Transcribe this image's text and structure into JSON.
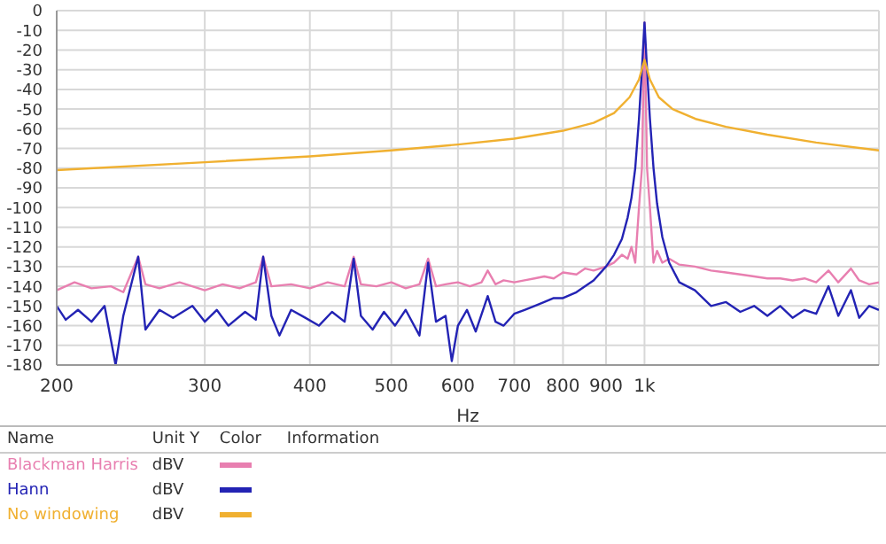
{
  "chart_data": {
    "type": "line",
    "xlabel": "Hz",
    "log": "x",
    "grid": true,
    "legend": "bottom",
    "marker": "none",
    "line_style": "solid",
    "xlim": [
      200,
      1900
    ],
    "xticks": [
      200,
      300,
      400,
      500,
      600,
      700,
      800,
      900,
      {
        "value": 1000,
        "label": "1k"
      }
    ],
    "ylim": [
      -180,
      0
    ],
    "yticks": [
      0,
      -10,
      -20,
      -30,
      -40,
      -50,
      -60,
      -70,
      -80,
      -90,
      -100,
      -110,
      -120,
      -130,
      -140,
      -150,
      -160,
      -170,
      -180
    ],
    "annotations": [
      "Name",
      "Unit Y",
      "Color",
      "Information",
      "dBV"
    ],
    "series": [
      {
        "name": "Blackman Harris",
        "color": "#e87fb0",
        "x": [
          200,
          210,
          220,
          232,
          240,
          250,
          255,
          265,
          280,
          300,
          315,
          330,
          345,
          352,
          360,
          380,
          400,
          420,
          440,
          451,
          460,
          480,
          500,
          520,
          540,
          553,
          565,
          580,
          600,
          620,
          640,
          651,
          665,
          680,
          700,
          720,
          740,
          760,
          780,
          800,
          830,
          850,
          870,
          900,
          920,
          940,
          955,
          965,
          975,
          985,
          993,
          1000,
          1007,
          1015,
          1025,
          1035,
          1050,
          1070,
          1100,
          1148,
          1200,
          1250,
          1300,
          1350,
          1400,
          1450,
          1500,
          1550,
          1600,
          1655,
          1700,
          1760,
          1800,
          1850,
          1900
        ],
        "values": [
          -142,
          -138,
          -141,
          -140,
          -143,
          -125,
          -139,
          -141,
          -138,
          -142,
          -139,
          -141,
          -138,
          -125,
          -140,
          -139,
          -141,
          -138,
          -140,
          -125,
          -139,
          -140,
          -138,
          -141,
          -139,
          -126,
          -140,
          -139,
          -138,
          -140,
          -138,
          -132,
          -139,
          -137,
          -138,
          -137,
          -136,
          -135,
          -136,
          -133,
          -134,
          -131,
          -132,
          -130,
          -128,
          -124,
          -126,
          -120,
          -128,
          -100,
          -80,
          -6,
          -80,
          -100,
          -128,
          -122,
          -128,
          -126,
          -129,
          -130,
          -132,
          -133,
          -134,
          -135,
          -136,
          -136,
          -137,
          -136,
          -138,
          -132,
          -138,
          -131,
          -137,
          -139,
          -138
        ]
      },
      {
        "name": "Hann",
        "color": "#2323b4",
        "x": [
          200,
          205,
          212,
          220,
          228,
          235,
          240,
          250,
          255,
          265,
          275,
          290,
          300,
          310,
          320,
          335,
          345,
          352,
          360,
          368,
          380,
          395,
          410,
          425,
          440,
          451,
          460,
          475,
          490,
          505,
          520,
          540,
          553,
          565,
          580,
          590,
          600,
          615,
          630,
          651,
          665,
          680,
          700,
          720,
          740,
          760,
          780,
          800,
          830,
          850,
          870,
          900,
          920,
          940,
          955,
          965,
          975,
          985,
          993,
          1000,
          1007,
          1015,
          1025,
          1035,
          1050,
          1070,
          1100,
          1148,
          1200,
          1250,
          1300,
          1350,
          1400,
          1450,
          1500,
          1550,
          1600,
          1655,
          1700,
          1760,
          1800,
          1850,
          1900
        ],
        "values": [
          -150,
          -157,
          -152,
          -158,
          -150,
          -180,
          -155,
          -125,
          -162,
          -152,
          -156,
          -150,
          -158,
          -152,
          -160,
          -153,
          -157,
          -125,
          -155,
          -165,
          -152,
          -156,
          -160,
          -153,
          -158,
          -126,
          -155,
          -162,
          -153,
          -160,
          -152,
          -165,
          -128,
          -158,
          -155,
          -178,
          -160,
          -152,
          -163,
          -145,
          -158,
          -160,
          -154,
          -152,
          -150,
          -148,
          -146,
          -146,
          -143,
          -140,
          -137,
          -130,
          -124,
          -116,
          -105,
          -95,
          -80,
          -55,
          -30,
          -6,
          -30,
          -55,
          -80,
          -98,
          -115,
          -128,
          -138,
          -142,
          -150,
          -148,
          -153,
          -150,
          -155,
          -150,
          -156,
          -152,
          -154,
          -140,
          -155,
          -142,
          -156,
          -150,
          -152
        ]
      },
      {
        "name": "No windowing",
        "color": "#f0b030",
        "x": [
          200,
          300,
          400,
          500,
          600,
          700,
          800,
          870,
          920,
          960,
          985,
          1000,
          1015,
          1040,
          1080,
          1150,
          1250,
          1400,
          1600,
          1900
        ],
        "values": [
          -81,
          -77,
          -74,
          -71,
          -68,
          -65,
          -61,
          -57,
          -52,
          -44,
          -35,
          -25,
          -35,
          -44,
          -50,
          -55,
          -59,
          -63,
          -67,
          -71
        ]
      }
    ]
  }
}
